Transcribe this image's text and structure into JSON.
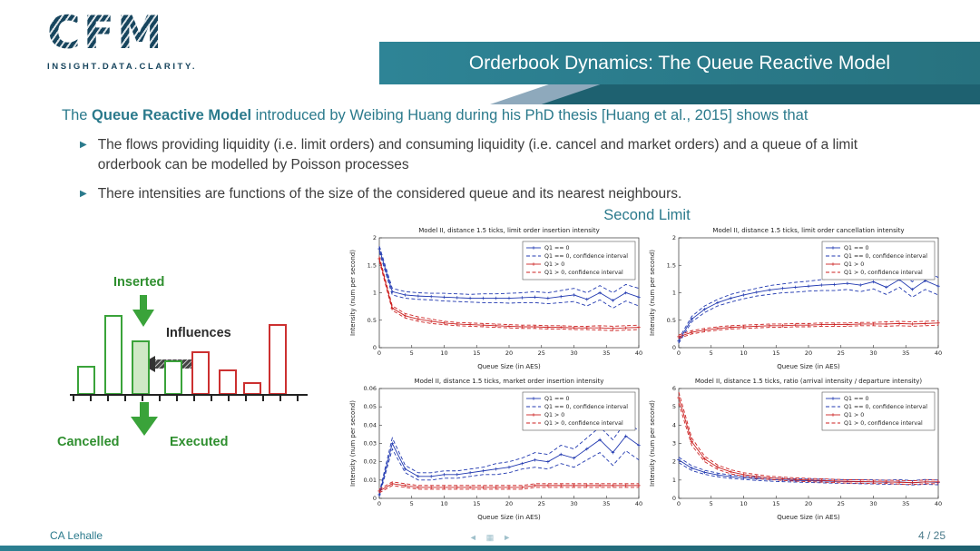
{
  "header": {
    "logo_text": "CFM",
    "logo_tagline": "INSIGHT.DATA.CLARITY.",
    "title": "Orderbook Dynamics: The Queue Reactive Model"
  },
  "intro": {
    "prefix": "The ",
    "bold": "Queue Reactive Model",
    "suffix": " introduced by Weibing Huang during his PhD thesis [Huang et al., 2015] shows that"
  },
  "bullets": [
    "The flows providing liquidity (i.e. limit orders) and consuming liquidity (i.e. cancel and market orders) and a queue of a limit orderbook can be modelled by Poisson processes",
    "There intensities are functions of the size of the considered queue and its nearest neighbours."
  ],
  "section_title": "Second Limit",
  "diagram": {
    "labels": {
      "inserted": "Inserted",
      "influences": "Influences",
      "cancelled": "Cancelled",
      "executed": "Executed"
    },
    "bars": [
      {
        "x": 30,
        "w": 20,
        "h": 32,
        "type": "green"
      },
      {
        "x": 60,
        "w": 20,
        "h": 88,
        "type": "green"
      },
      {
        "x": 90,
        "w": 20,
        "h": 60,
        "type": "green-filled"
      },
      {
        "x": 126,
        "w": 20,
        "h": 38,
        "type": "green"
      },
      {
        "x": 156,
        "w": 20,
        "h": 48,
        "type": "red"
      },
      {
        "x": 186,
        "w": 20,
        "h": 28,
        "type": "red"
      },
      {
        "x": 213,
        "w": 20,
        "h": 14,
        "type": "red"
      },
      {
        "x": 241,
        "w": 20,
        "h": 78,
        "type": "red"
      }
    ]
  },
  "footer": {
    "author": "CA Lehalle",
    "page": "4 / 25",
    "nav_symbols": [
      "◄",
      "▦",
      "►"
    ]
  },
  "colors": {
    "accent_teal": "#2b7a8c",
    "dark_teal": "#1e6170",
    "slate": "#8ea9bc",
    "logo": "#17455e",
    "diagram_green": "#3aa33a",
    "diagram_red": "#cc3030",
    "series_blue": "#2038b0",
    "series_red": "#cc2222"
  },
  "chart_data": [
    {
      "type": "line",
      "title": "Model II, distance 1.5 ticks, limit order insertion intensity",
      "xlabel": "Queue Size (in AES)",
      "ylabel": "Intensity (num per second)",
      "xlim": [
        0,
        40
      ],
      "ylim": [
        0,
        2
      ],
      "xticks": [
        0,
        5,
        10,
        15,
        20,
        25,
        30,
        35,
        40
      ],
      "yticks": [
        0,
        0.5,
        1,
        1.5,
        2
      ],
      "legend_position": "top-right",
      "x": [
        0,
        2,
        4,
        6,
        8,
        10,
        12,
        14,
        16,
        18,
        20,
        22,
        24,
        26,
        28,
        30,
        32,
        34,
        36,
        38,
        40
      ],
      "series": [
        {
          "name": "Q1 == 0",
          "color": "#2038b0",
          "style": "solid",
          "marker": "+",
          "values": [
            1.8,
            1.02,
            0.96,
            0.94,
            0.93,
            0.92,
            0.91,
            0.9,
            0.9,
            0.9,
            0.9,
            0.91,
            0.92,
            0.9,
            0.93,
            0.96,
            0.88,
            1.0,
            0.86,
            1.0,
            0.92
          ]
        },
        {
          "name": "Q1 == 0, confidence interval",
          "color": "#2038b0",
          "style": "dashed",
          "upper": [
            1.85,
            1.08,
            1.02,
            1.0,
            0.99,
            0.99,
            0.98,
            0.97,
            0.98,
            0.98,
            0.99,
            1.0,
            1.02,
            1.0,
            1.04,
            1.08,
            1.0,
            1.13,
            1.0,
            1.15,
            1.08
          ],
          "lower": [
            1.75,
            0.96,
            0.9,
            0.88,
            0.87,
            0.85,
            0.84,
            0.83,
            0.82,
            0.82,
            0.81,
            0.82,
            0.82,
            0.8,
            0.82,
            0.84,
            0.76,
            0.87,
            0.72,
            0.85,
            0.76
          ]
        },
        {
          "name": "Q1 > 0",
          "color": "#cc2222",
          "style": "solid",
          "marker": "+",
          "values": [
            1.62,
            0.72,
            0.58,
            0.52,
            0.48,
            0.45,
            0.43,
            0.42,
            0.41,
            0.4,
            0.39,
            0.38,
            0.38,
            0.37,
            0.37,
            0.36,
            0.36,
            0.36,
            0.35,
            0.36,
            0.37
          ]
        },
        {
          "name": "Q1 > 0, confidence interval",
          "color": "#cc2222",
          "style": "dashed",
          "upper": [
            1.66,
            0.76,
            0.62,
            0.56,
            0.52,
            0.48,
            0.46,
            0.45,
            0.44,
            0.43,
            0.42,
            0.41,
            0.41,
            0.4,
            0.4,
            0.39,
            0.39,
            0.4,
            0.39,
            0.4,
            0.41
          ],
          "lower": [
            1.58,
            0.68,
            0.54,
            0.48,
            0.44,
            0.42,
            0.4,
            0.39,
            0.38,
            0.37,
            0.36,
            0.35,
            0.35,
            0.34,
            0.34,
            0.33,
            0.33,
            0.32,
            0.31,
            0.32,
            0.33
          ]
        }
      ]
    },
    {
      "type": "line",
      "title": "Model II, distance 1.5 ticks, limit order cancellation intensity",
      "xlabel": "Queue Size (in AES)",
      "ylabel": "Intensity (num per second)",
      "xlim": [
        0,
        40
      ],
      "ylim": [
        0,
        2
      ],
      "xticks": [
        0,
        5,
        10,
        15,
        20,
        25,
        30,
        35,
        40
      ],
      "yticks": [
        0,
        0.5,
        1,
        1.5,
        2
      ],
      "legend_position": "top-right",
      "x": [
        0,
        2,
        4,
        6,
        8,
        10,
        12,
        14,
        16,
        18,
        20,
        22,
        24,
        26,
        28,
        30,
        32,
        34,
        36,
        38,
        40
      ],
      "series": [
        {
          "name": "Q1 == 0",
          "color": "#2038b0",
          "style": "solid",
          "marker": "+",
          "values": [
            0.12,
            0.52,
            0.7,
            0.82,
            0.9,
            0.96,
            1.01,
            1.05,
            1.08,
            1.1,
            1.12,
            1.14,
            1.15,
            1.17,
            1.14,
            1.2,
            1.1,
            1.24,
            1.06,
            1.22,
            1.12
          ]
        },
        {
          "name": "Q1 == 0, confidence interval",
          "color": "#2038b0",
          "style": "dashed",
          "upper": [
            0.16,
            0.57,
            0.76,
            0.88,
            0.97,
            1.03,
            1.08,
            1.13,
            1.16,
            1.19,
            1.21,
            1.24,
            1.26,
            1.28,
            1.26,
            1.33,
            1.23,
            1.38,
            1.2,
            1.38,
            1.28
          ],
          "lower": [
            0.08,
            0.47,
            0.64,
            0.76,
            0.83,
            0.89,
            0.94,
            0.97,
            1.0,
            1.01,
            1.03,
            1.04,
            1.04,
            1.06,
            1.02,
            1.07,
            0.97,
            1.1,
            0.92,
            1.06,
            0.96
          ]
        },
        {
          "name": "Q1 > 0",
          "color": "#cc2222",
          "style": "solid",
          "marker": "+",
          "values": [
            0.2,
            0.28,
            0.32,
            0.35,
            0.37,
            0.38,
            0.39,
            0.4,
            0.4,
            0.41,
            0.41,
            0.42,
            0.42,
            0.42,
            0.43,
            0.43,
            0.43,
            0.44,
            0.43,
            0.44,
            0.45
          ]
        },
        {
          "name": "Q1 > 0, confidence interval",
          "color": "#cc2222",
          "style": "dashed",
          "upper": [
            0.23,
            0.31,
            0.35,
            0.38,
            0.4,
            0.41,
            0.42,
            0.43,
            0.43,
            0.44,
            0.44,
            0.45,
            0.45,
            0.45,
            0.46,
            0.46,
            0.47,
            0.48,
            0.47,
            0.48,
            0.49
          ],
          "lower": [
            0.17,
            0.25,
            0.29,
            0.32,
            0.34,
            0.35,
            0.36,
            0.37,
            0.37,
            0.38,
            0.38,
            0.39,
            0.39,
            0.39,
            0.4,
            0.4,
            0.39,
            0.4,
            0.39,
            0.4,
            0.41
          ]
        }
      ]
    },
    {
      "type": "line",
      "title": "Model II, distance 1.5 ticks, market order insertion intensity",
      "xlabel": "Queue Size (in AES)",
      "ylabel": "Intensity (num per second)",
      "xlim": [
        0,
        40
      ],
      "ylim": [
        0,
        0.06
      ],
      "xticks": [
        0,
        5,
        10,
        15,
        20,
        25,
        30,
        35,
        40
      ],
      "yticks": [
        0,
        0.01,
        0.02,
        0.03,
        0.04,
        0.05,
        0.06
      ],
      "legend_position": "top-right",
      "x": [
        0,
        2,
        4,
        6,
        8,
        10,
        12,
        14,
        16,
        18,
        20,
        22,
        24,
        26,
        28,
        30,
        32,
        34,
        36,
        38,
        40
      ],
      "series": [
        {
          "name": "Q1 == 0",
          "color": "#2038b0",
          "style": "solid",
          "marker": "+",
          "values": [
            0.002,
            0.03,
            0.016,
            0.012,
            0.012,
            0.013,
            0.013,
            0.014,
            0.015,
            0.016,
            0.017,
            0.019,
            0.021,
            0.02,
            0.024,
            0.022,
            0.027,
            0.032,
            0.025,
            0.034,
            0.029
          ]
        },
        {
          "name": "Q1 == 0, confidence interval",
          "color": "#2038b0",
          "style": "dashed",
          "upper": [
            0.003,
            0.033,
            0.018,
            0.014,
            0.014,
            0.015,
            0.015,
            0.016,
            0.017,
            0.019,
            0.02,
            0.022,
            0.025,
            0.024,
            0.029,
            0.027,
            0.033,
            0.039,
            0.032,
            0.042,
            0.037
          ],
          "lower": [
            0.001,
            0.027,
            0.014,
            0.01,
            0.01,
            0.011,
            0.011,
            0.012,
            0.013,
            0.013,
            0.014,
            0.016,
            0.017,
            0.016,
            0.019,
            0.017,
            0.021,
            0.025,
            0.018,
            0.026,
            0.021
          ]
        },
        {
          "name": "Q1 > 0",
          "color": "#cc2222",
          "style": "solid",
          "marker": "+",
          "values": [
            0.004,
            0.008,
            0.007,
            0.006,
            0.006,
            0.006,
            0.006,
            0.006,
            0.006,
            0.006,
            0.006,
            0.006,
            0.007,
            0.007,
            0.007,
            0.007,
            0.007,
            0.007,
            0.007,
            0.007,
            0.007
          ]
        },
        {
          "name": "Q1 > 0, confidence interval",
          "color": "#cc2222",
          "style": "dashed",
          "upper": [
            0.005,
            0.009,
            0.008,
            0.007,
            0.007,
            0.007,
            0.007,
            0.007,
            0.007,
            0.007,
            0.007,
            0.007,
            0.008,
            0.008,
            0.008,
            0.008,
            0.008,
            0.008,
            0.008,
            0.008,
            0.008
          ],
          "lower": [
            0.003,
            0.007,
            0.006,
            0.005,
            0.005,
            0.005,
            0.005,
            0.005,
            0.005,
            0.005,
            0.005,
            0.005,
            0.006,
            0.006,
            0.006,
            0.006,
            0.006,
            0.006,
            0.006,
            0.006,
            0.006
          ]
        }
      ]
    },
    {
      "type": "line",
      "title": "Model II, distance 1.5 ticks, ratio (arrival intensity / departure intensity)",
      "xlabel": "Queue Size (in AES)",
      "ylabel": "Intensity (num per second)",
      "xlim": [
        0,
        40
      ],
      "ylim": [
        0,
        6
      ],
      "xticks": [
        0,
        5,
        10,
        15,
        20,
        25,
        30,
        35,
        40
      ],
      "yticks": [
        0,
        1,
        2,
        3,
        4,
        5,
        6
      ],
      "legend_position": "top-right",
      "x": [
        0,
        2,
        4,
        6,
        8,
        10,
        12,
        14,
        16,
        18,
        20,
        22,
        24,
        26,
        28,
        30,
        32,
        34,
        36,
        38,
        40
      ],
      "series": [
        {
          "name": "Q1 == 0",
          "color": "#2038b0",
          "style": "solid",
          "marker": "+",
          "values": [
            2.1,
            1.65,
            1.42,
            1.28,
            1.18,
            1.12,
            1.07,
            1.03,
            1.0,
            0.98,
            0.96,
            0.95,
            0.93,
            0.92,
            0.91,
            0.9,
            0.88,
            0.9,
            0.85,
            0.9,
            0.87
          ]
        },
        {
          "name": "Q1 == 0, confidence interval",
          "color": "#2038b0",
          "style": "dashed",
          "upper": [
            2.25,
            1.78,
            1.53,
            1.38,
            1.27,
            1.21,
            1.16,
            1.12,
            1.09,
            1.07,
            1.05,
            1.05,
            1.03,
            1.02,
            1.02,
            1.01,
            0.99,
            1.02,
            0.97,
            1.03,
            1.0
          ],
          "lower": [
            1.95,
            1.52,
            1.31,
            1.18,
            1.09,
            1.03,
            0.98,
            0.94,
            0.91,
            0.89,
            0.87,
            0.85,
            0.83,
            0.82,
            0.8,
            0.79,
            0.77,
            0.78,
            0.73,
            0.77,
            0.74
          ]
        },
        {
          "name": "Q1 > 0",
          "color": "#cc2222",
          "style": "solid",
          "marker": "+",
          "values": [
            5.5,
            3.1,
            2.15,
            1.7,
            1.45,
            1.3,
            1.2,
            1.12,
            1.07,
            1.03,
            1.0,
            0.98,
            0.95,
            0.93,
            0.92,
            0.9,
            0.9,
            0.88,
            0.86,
            0.9,
            0.9
          ]
        },
        {
          "name": "Q1 > 0, confidence interval",
          "color": "#cc2222",
          "style": "dashed",
          "upper": [
            5.8,
            3.3,
            2.3,
            1.82,
            1.56,
            1.4,
            1.3,
            1.21,
            1.16,
            1.12,
            1.09,
            1.07,
            1.04,
            1.02,
            1.01,
            0.99,
            0.99,
            0.98,
            0.96,
            1.0,
            1.0
          ],
          "lower": [
            5.2,
            2.9,
            2.0,
            1.58,
            1.34,
            1.2,
            1.1,
            1.03,
            0.98,
            0.94,
            0.91,
            0.89,
            0.86,
            0.84,
            0.83,
            0.81,
            0.81,
            0.78,
            0.76,
            0.8,
            0.8
          ]
        }
      ]
    }
  ]
}
